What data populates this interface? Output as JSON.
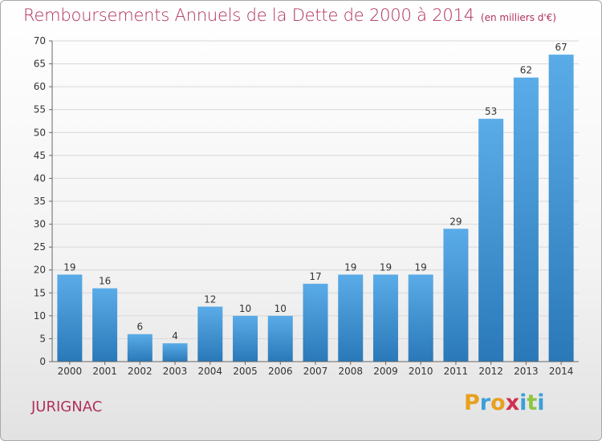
{
  "title": "Remboursements Annuels de la Dette de 2000 à 2014",
  "unit": "(en milliers d'€)",
  "commune": "JURIGNAC",
  "logo": {
    "text": "Proxiti",
    "letters": [
      {
        "ch": "P",
        "color": "#e8a020"
      },
      {
        "ch": "r",
        "color": "#3aa0d8"
      },
      {
        "ch": "o",
        "color": "#e8a020"
      },
      {
        "ch": "x",
        "color": "#d03050"
      },
      {
        "ch": "i",
        "color": "#3aa0d8"
      },
      {
        "ch": "t",
        "color": "#8dc63f"
      },
      {
        "ch": "i",
        "color": "#3aa0d8"
      }
    ]
  },
  "colors": {
    "title": "#b0305e",
    "bar_light": "#5aace8",
    "bar_dark": "#2a78b8",
    "grid": "#d8d8d8",
    "axis": "#666666"
  },
  "chart_data": {
    "type": "bar",
    "categories": [
      "2000",
      "2001",
      "2002",
      "2003",
      "2004",
      "2005",
      "2006",
      "2007",
      "2008",
      "2009",
      "2010",
      "2011",
      "2012",
      "2013",
      "2014"
    ],
    "values": [
      19,
      16,
      6,
      4,
      12,
      10,
      10,
      17,
      19,
      19,
      19,
      29,
      53,
      62,
      67
    ],
    "title": "Remboursements Annuels de la Dette de 2000 à 2014",
    "xlabel": "",
    "ylabel": "",
    "ylim": [
      0,
      70
    ],
    "yticks": [
      0,
      5,
      10,
      15,
      20,
      25,
      30,
      35,
      40,
      45,
      50,
      55,
      60,
      65,
      70
    ],
    "grid": true,
    "legend": "none"
  }
}
